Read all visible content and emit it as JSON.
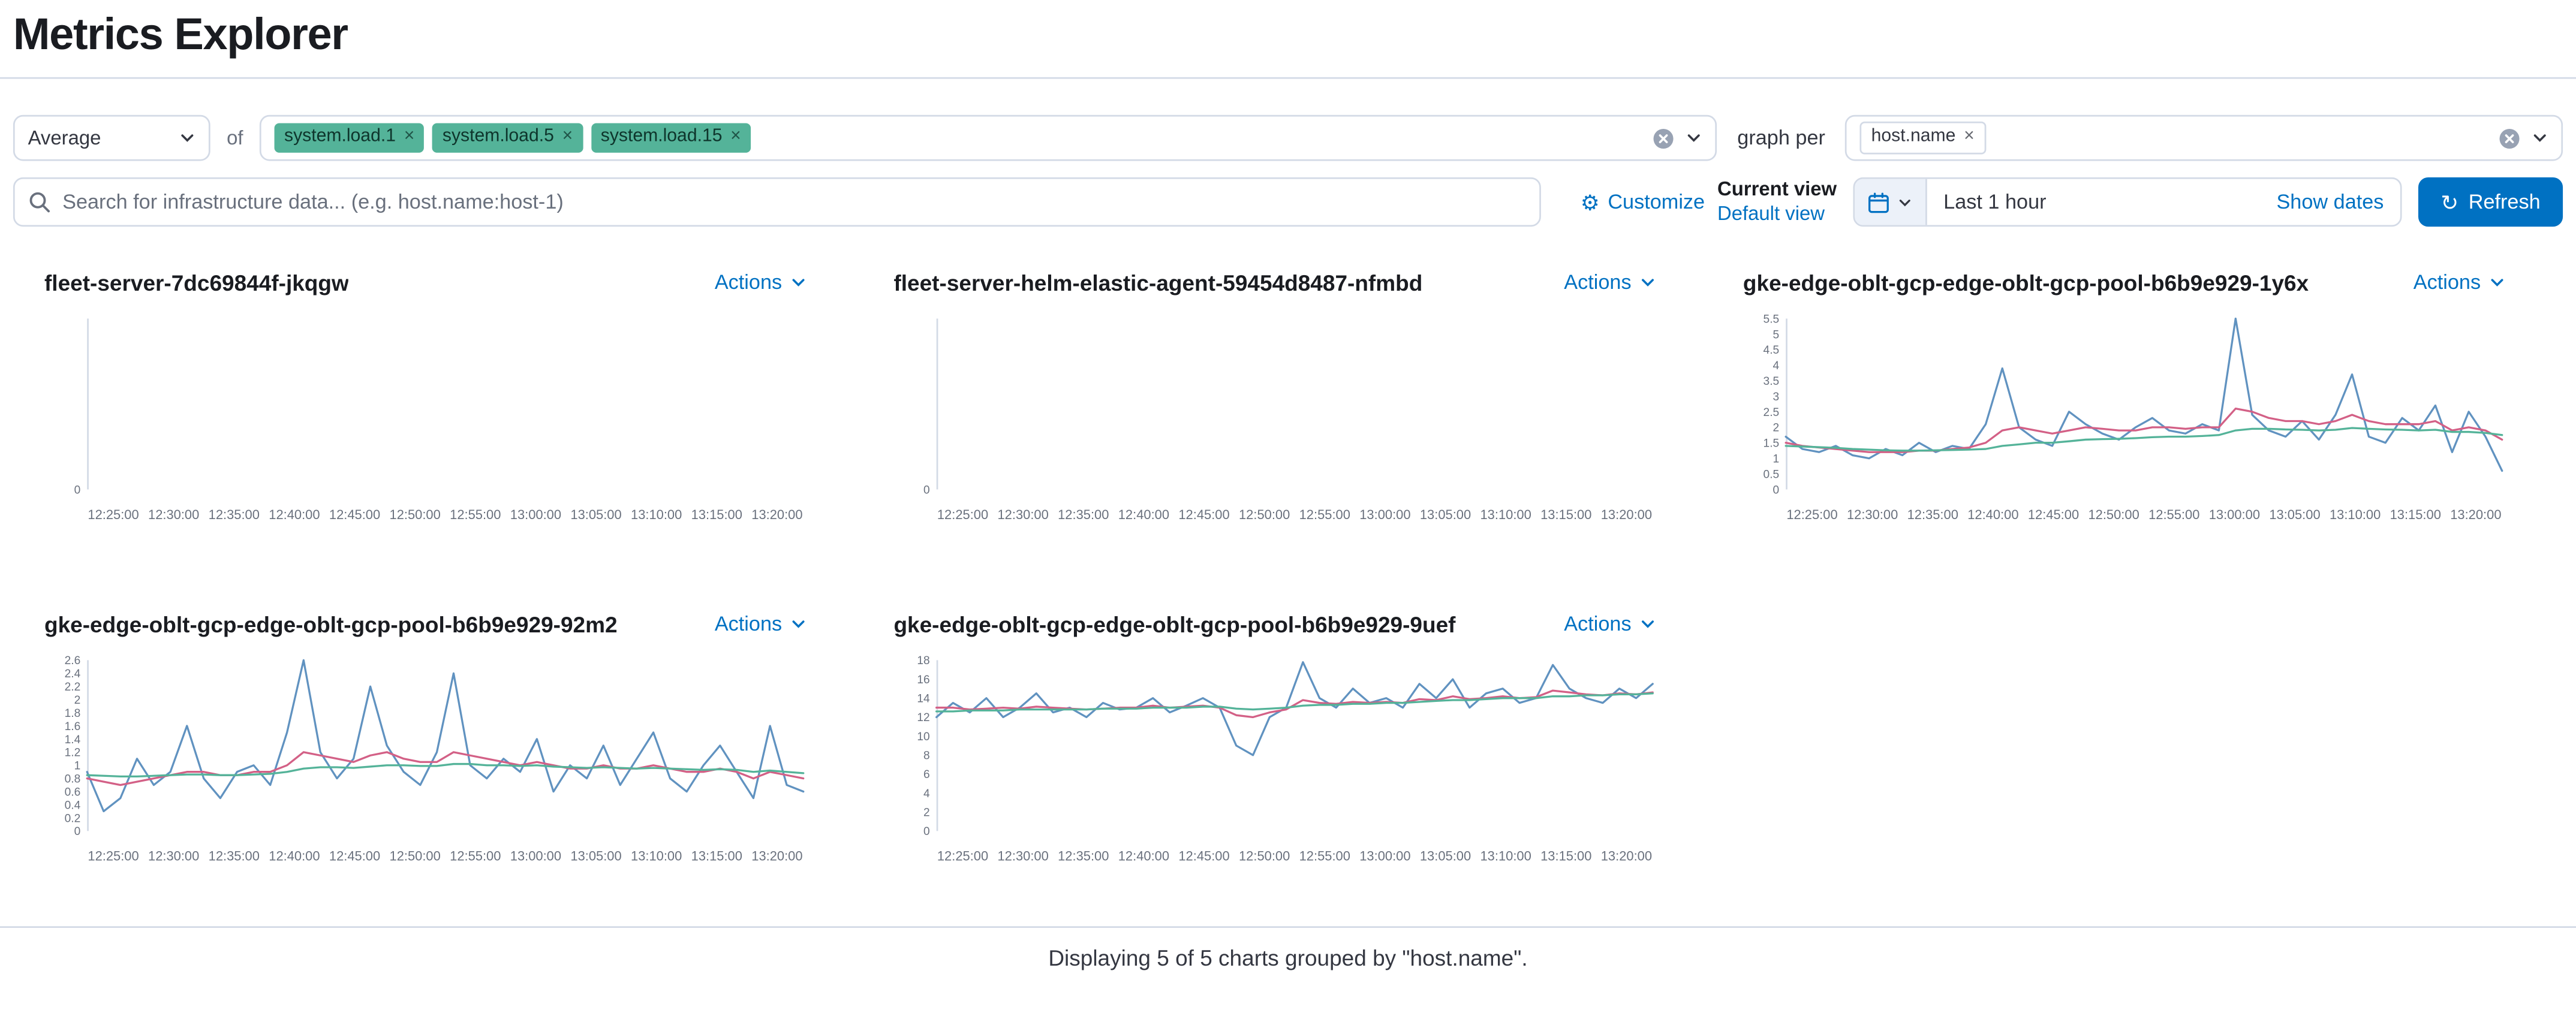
{
  "page": {
    "title": "Metrics Explorer"
  },
  "ui": {
    "pill_remove_glyph": "×",
    "gear_glyph": "⚙",
    "refresh_glyph": "↻"
  },
  "toolbar": {
    "aggregation_select": {
      "value": "Average"
    },
    "of_label": "of",
    "metric_pills": [
      {
        "label": "system.load.1"
      },
      {
        "label": "system.load.5"
      },
      {
        "label": "system.load.15"
      }
    ],
    "graph_per_label": "graph per",
    "group_pills": [
      {
        "label": "host.name"
      }
    ]
  },
  "search": {
    "placeholder": "Search for infrastructure data... (e.g. host.name:host-1)"
  },
  "view_controls": {
    "customize_label": "Customize",
    "current_view_label": "Current view",
    "default_view_label": "Default view"
  },
  "datepicker": {
    "range_label": "Last 1 hour",
    "show_dates_label": "Show dates"
  },
  "refresh": {
    "label": "Refresh"
  },
  "charts": [
    {
      "title": "fleet-server-7dc69844f-jkqgw",
      "actions_label": "Actions"
    },
    {
      "title": "fleet-server-helm-elastic-agent-59454d8487-nfmbd",
      "actions_label": "Actions"
    },
    {
      "title": "gke-edge-oblt-gcp-edge-oblt-gcp-pool-b6b9e929-1y6x",
      "actions_label": "Actions"
    },
    {
      "title": "gke-edge-oblt-gcp-edge-oblt-gcp-pool-b6b9e929-92m2",
      "actions_label": "Actions"
    },
    {
      "title": "gke-edge-oblt-gcp-edge-oblt-gcp-pool-b6b9e929-9uef",
      "actions_label": "Actions"
    }
  ],
  "footer": {
    "text": "Displaying 5 of 5 charts grouped by \"host.name\"."
  },
  "colors": {
    "accent": "#0071c2",
    "badge_green": "#54B399",
    "series_blue": "#6092C0",
    "series_pink": "#D36086",
    "series_green": "#54B399"
  },
  "chart_data": [
    {
      "type": "line",
      "title": "fleet-server-7dc69844f-jkqgw",
      "x_ticks": [
        "12:25:00",
        "12:30:00",
        "12:35:00",
        "12:40:00",
        "12:45:00",
        "12:50:00",
        "12:55:00",
        "13:00:00",
        "13:05:00",
        "13:10:00",
        "13:15:00",
        "13:20:00"
      ],
      "yticks": [
        "0"
      ],
      "ymax": 1,
      "series": []
    },
    {
      "type": "line",
      "title": "fleet-server-helm-elastic-agent-59454d8487-nfmbd",
      "x_ticks": [
        "12:25:00",
        "12:30:00",
        "12:35:00",
        "12:40:00",
        "12:45:00",
        "12:50:00",
        "12:55:00",
        "13:00:00",
        "13:05:00",
        "13:10:00",
        "13:15:00",
        "13:20:00"
      ],
      "yticks": [
        "0"
      ],
      "ymax": 1,
      "series": []
    },
    {
      "type": "line",
      "title": "gke-edge-oblt-gcp-edge-oblt-gcp-pool-b6b9e929-1y6x",
      "x_ticks": [
        "12:25:00",
        "12:30:00",
        "12:35:00",
        "12:40:00",
        "12:45:00",
        "12:50:00",
        "12:55:00",
        "13:00:00",
        "13:05:00",
        "13:10:00",
        "13:15:00",
        "13:20:00"
      ],
      "yticks": [
        "0",
        "0.5",
        "1",
        "1.5",
        "2",
        "2.5",
        "3",
        "3.5",
        "4",
        "4.5",
        "5",
        "5.5"
      ],
      "ymax": 5.5,
      "series": [
        {
          "name": "system.load.1",
          "color": "#6092C0",
          "values": [
            1.7,
            1.3,
            1.2,
            1.4,
            1.1,
            1.0,
            1.3,
            1.1,
            1.5,
            1.2,
            1.4,
            1.3,
            2.1,
            3.9,
            2.0,
            1.6,
            1.4,
            2.5,
            2.1,
            1.8,
            1.6,
            2.0,
            2.3,
            1.9,
            1.8,
            2.1,
            1.9,
            5.5,
            2.4,
            1.9,
            1.7,
            2.2,
            1.6,
            2.4,
            3.7,
            1.7,
            1.5,
            2.3,
            1.9,
            2.7,
            1.2,
            2.5,
            1.7,
            0.6
          ]
        },
        {
          "name": "system.load.5",
          "color": "#D36086",
          "values": [
            1.5,
            1.4,
            1.35,
            1.3,
            1.25,
            1.2,
            1.2,
            1.2,
            1.25,
            1.25,
            1.3,
            1.35,
            1.5,
            1.9,
            2.0,
            1.9,
            1.8,
            1.9,
            2.0,
            1.95,
            1.9,
            1.9,
            2.0,
            2.0,
            1.95,
            2.0,
            2.0,
            2.6,
            2.5,
            2.3,
            2.2,
            2.2,
            2.1,
            2.2,
            2.4,
            2.2,
            2.1,
            2.1,
            2.1,
            2.2,
            1.9,
            2.0,
            1.9,
            1.6
          ]
        },
        {
          "name": "system.load.15",
          "color": "#54B399",
          "values": [
            1.4,
            1.38,
            1.36,
            1.34,
            1.3,
            1.28,
            1.26,
            1.25,
            1.25,
            1.26,
            1.27,
            1.28,
            1.3,
            1.4,
            1.45,
            1.5,
            1.5,
            1.55,
            1.6,
            1.62,
            1.63,
            1.65,
            1.68,
            1.7,
            1.7,
            1.72,
            1.75,
            1.9,
            1.95,
            1.95,
            1.93,
            1.92,
            1.9,
            1.92,
            1.98,
            1.95,
            1.93,
            1.92,
            1.9,
            1.92,
            1.85,
            1.85,
            1.82,
            1.75
          ]
        }
      ]
    },
    {
      "type": "line",
      "title": "gke-edge-oblt-gcp-edge-oblt-gcp-pool-b6b9e929-92m2",
      "x_ticks": [
        "12:25:00",
        "12:30:00",
        "12:35:00",
        "12:40:00",
        "12:45:00",
        "12:50:00",
        "12:55:00",
        "13:00:00",
        "13:05:00",
        "13:10:00",
        "13:15:00",
        "13:20:00"
      ],
      "yticks": [
        "0",
        "0.2",
        "0.4",
        "0.6",
        "0.8",
        "1",
        "1.2",
        "1.4",
        "1.6",
        "1.8",
        "2",
        "2.2",
        "2.4",
        "2.6"
      ],
      "ymax": 2.6,
      "series": [
        {
          "name": "system.load.1",
          "color": "#6092C0",
          "values": [
            0.9,
            0.3,
            0.5,
            1.1,
            0.7,
            0.9,
            1.6,
            0.8,
            0.5,
            0.9,
            1.0,
            0.7,
            1.5,
            2.6,
            1.2,
            0.8,
            1.1,
            2.2,
            1.3,
            0.9,
            0.7,
            1.2,
            2.4,
            1.0,
            0.8,
            1.1,
            0.9,
            1.4,
            0.6,
            1.0,
            0.8,
            1.3,
            0.7,
            1.1,
            1.5,
            0.8,
            0.6,
            1.0,
            1.3,
            0.9,
            0.5,
            1.6,
            0.7,
            0.6
          ]
        },
        {
          "name": "system.load.5",
          "color": "#D36086",
          "values": [
            0.8,
            0.75,
            0.7,
            0.75,
            0.8,
            0.85,
            0.9,
            0.9,
            0.85,
            0.85,
            0.9,
            0.9,
            1.0,
            1.2,
            1.15,
            1.1,
            1.05,
            1.15,
            1.2,
            1.1,
            1.05,
            1.05,
            1.2,
            1.15,
            1.1,
            1.05,
            1.0,
            1.05,
            1.0,
            0.95,
            0.95,
            1.0,
            0.95,
            0.95,
            1.0,
            0.95,
            0.9,
            0.9,
            0.95,
            0.9,
            0.8,
            0.9,
            0.85,
            0.8
          ]
        },
        {
          "name": "system.load.15",
          "color": "#54B399",
          "values": [
            0.85,
            0.84,
            0.83,
            0.83,
            0.84,
            0.85,
            0.86,
            0.86,
            0.85,
            0.85,
            0.86,
            0.87,
            0.9,
            0.95,
            0.97,
            0.97,
            0.96,
            0.98,
            1.0,
            1.0,
            0.99,
            0.99,
            1.02,
            1.02,
            1.0,
            1.0,
            0.99,
            1.0,
            0.98,
            0.97,
            0.96,
            0.97,
            0.96,
            0.95,
            0.96,
            0.95,
            0.94,
            0.93,
            0.94,
            0.93,
            0.9,
            0.92,
            0.9,
            0.88
          ]
        }
      ]
    },
    {
      "type": "line",
      "title": "gke-edge-oblt-gcp-edge-oblt-gcp-pool-b6b9e929-9uef",
      "x_ticks": [
        "12:25:00",
        "12:30:00",
        "12:35:00",
        "12:40:00",
        "12:45:00",
        "12:50:00",
        "12:55:00",
        "13:00:00",
        "13:05:00",
        "13:10:00",
        "13:15:00",
        "13:20:00"
      ],
      "yticks": [
        "0",
        "2",
        "4",
        "6",
        "8",
        "10",
        "12",
        "14",
        "16",
        "18"
      ],
      "ymax": 18,
      "series": [
        {
          "name": "system.load.1",
          "color": "#6092C0",
          "values": [
            12,
            13.5,
            12.5,
            14,
            12,
            13,
            14.5,
            12.5,
            13,
            12,
            13.5,
            12.8,
            13,
            14,
            12.5,
            13.2,
            14,
            13,
            9,
            8,
            12,
            13,
            17.8,
            14,
            13,
            15,
            13.5,
            14,
            13,
            15.5,
            14,
            16,
            13,
            14.5,
            15,
            13.5,
            14,
            17.5,
            15,
            14,
            13.5,
            15,
            14,
            15.5
          ]
        },
        {
          "name": "system.load.5",
          "color": "#D36086",
          "values": [
            13,
            13,
            12.8,
            12.9,
            13,
            12.9,
            13.1,
            13,
            12.9,
            12.8,
            12.9,
            13,
            13,
            13.2,
            13,
            13.1,
            13.2,
            13,
            12.2,
            12,
            12.5,
            12.8,
            13.8,
            13.5,
            13.4,
            13.6,
            13.5,
            13.6,
            13.5,
            13.9,
            13.8,
            14.2,
            13.9,
            14,
            14.2,
            14,
            14.1,
            14.8,
            14.6,
            14.4,
            14.3,
            14.5,
            14.4,
            14.6
          ]
        },
        {
          "name": "system.load.15",
          "color": "#54B399",
          "values": [
            12.6,
            12.6,
            12.7,
            12.7,
            12.7,
            12.8,
            12.8,
            12.8,
            12.8,
            12.8,
            12.9,
            12.9,
            12.9,
            13,
            13,
            13,
            13.1,
            13.1,
            12.9,
            12.8,
            12.9,
            13,
            13.2,
            13.3,
            13.3,
            13.4,
            13.4,
            13.5,
            13.5,
            13.6,
            13.7,
            13.8,
            13.8,
            13.9,
            14,
            14,
            14,
            14.2,
            14.2,
            14.3,
            14.3,
            14.4,
            14.4,
            14.5
          ]
        }
      ]
    }
  ]
}
